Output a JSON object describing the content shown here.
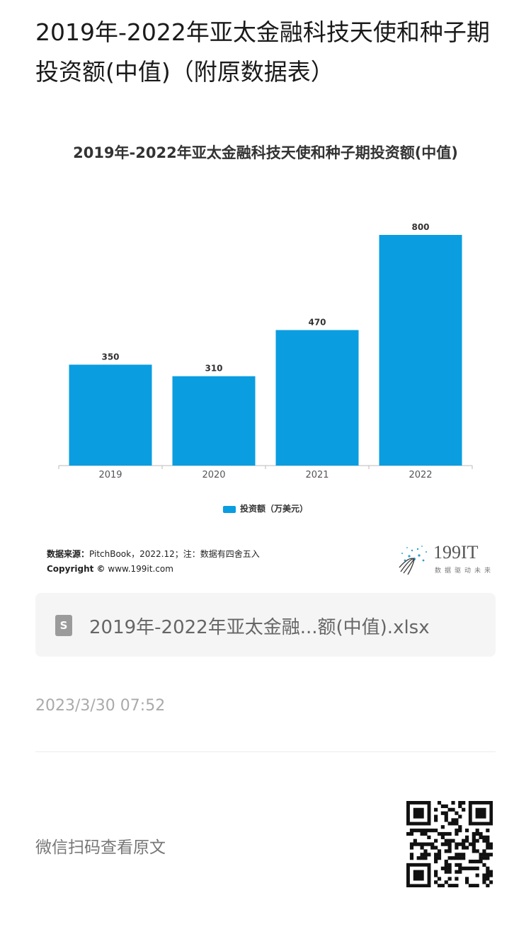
{
  "page": {
    "title": "2019年-2022年亚太金融科技天使和种子期投资额(中值)（附原数据表）"
  },
  "chart_data": {
    "type": "bar",
    "title": "2019年-2022年亚太金融科技天使和种子期投资额(中值)",
    "categories": [
      "2019",
      "2020",
      "2021",
      "2022"
    ],
    "series": [
      {
        "name": "投资额（万美元）",
        "values": [
          350,
          310,
          470,
          800
        ],
        "color": "#0a9de0"
      }
    ],
    "data_labels": [
      "350",
      "310",
      "470",
      "800"
    ],
    "ylim": [
      0,
      800
    ],
    "grid": false,
    "legend_position": "bottom"
  },
  "source": {
    "label": "数据来源：",
    "text": "PitchBook，2022.12；注：数据有四舍五入",
    "copyright_label": "Copyright ©",
    "copyright_site": "www.199it.com"
  },
  "logo": {
    "text": "199IT",
    "subtitle": "数据驱动未来"
  },
  "file": {
    "name": "2019年-2022年亚太金融...额(中值).xlsx",
    "icon_letter": "S",
    "icon": "spreadsheet-file-icon"
  },
  "timestamp": "2023/3/30 07:52",
  "footer": {
    "wechat_text": "微信扫码查看原文",
    "qr_icon": "qr-code-icon"
  }
}
